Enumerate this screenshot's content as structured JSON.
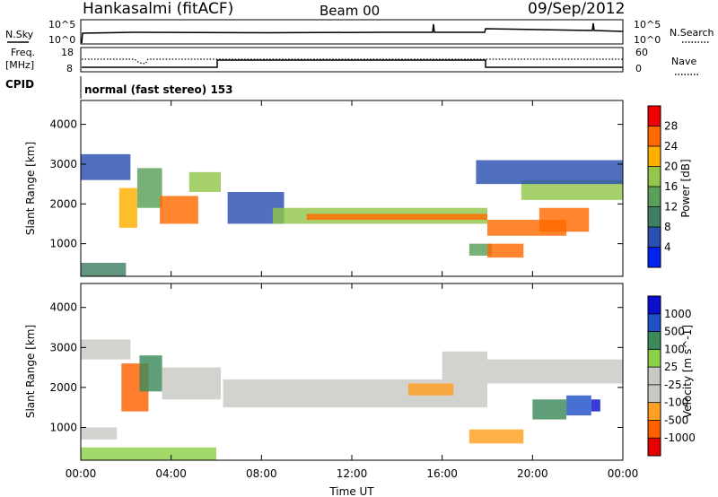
{
  "header": {
    "station": "Hankasalmi (fitACF)",
    "beam": "Beam 00",
    "date": "09/Sep/2012"
  },
  "panel_noise": {
    "left_label": "N.Sky",
    "right_label": "N.Search",
    "left_ticks": [
      "10^5",
      "10^0"
    ],
    "right_ticks": [
      "10^5",
      "10^0"
    ]
  },
  "panel_freq": {
    "left_label_1": "Freq.",
    "left_label_2": "[MHz]",
    "right_label": "Nave",
    "left_ticks": [
      "18",
      "8"
    ],
    "right_ticks": [
      "60",
      "0"
    ]
  },
  "panel_cpid": {
    "label": "CPID",
    "program": "normal (fast stereo) 153"
  },
  "colors": {
    "power": [
      "#0022ee",
      "#2a4fb0",
      "#3f7f63",
      "#5aa05a",
      "#93c64a",
      "#ffb000",
      "#ff6a00",
      "#ee0000"
    ],
    "velocity": [
      "#e80000",
      "#ff6000",
      "#ffa020",
      "#c8c8c4",
      "#c8c8c4",
      "#8cd048",
      "#3a8a5a",
      "#2050c8",
      "#0a10d0"
    ]
  },
  "chart_data": [
    {
      "type": "heatmap",
      "name": "power",
      "ylabel": "Slant Range [km]",
      "xlabel": "",
      "colorbar_label": "Power [dB]",
      "colorbar_ticks": [
        "4",
        "8",
        "12",
        "16",
        "20",
        "24",
        "28"
      ],
      "y_ticks": [
        "1000",
        "2000",
        "3000",
        "4000"
      ],
      "y_tick_values": [
        1000,
        2000,
        3000,
        4000
      ],
      "ylim": [
        180,
        4600
      ],
      "x_tick_values": [
        0,
        4,
        8,
        12,
        16,
        20,
        24
      ],
      "xlim": [
        0,
        24
      ],
      "regions": [
        {
          "t0": 0.0,
          "t1": 2.0,
          "r0": 180,
          "r1": 520,
          "level": 2
        },
        {
          "t0": 0.0,
          "t1": 2.2,
          "r0": 2600,
          "r1": 3250,
          "level": 1
        },
        {
          "t0": 1.7,
          "t1": 2.5,
          "r0": 1400,
          "r1": 2400,
          "level": 5
        },
        {
          "t0": 2.5,
          "t1": 3.6,
          "r0": 1900,
          "r1": 2900,
          "level": 3
        },
        {
          "t0": 3.5,
          "t1": 5.2,
          "r0": 1500,
          "r1": 2200,
          "level": 6
        },
        {
          "t0": 4.8,
          "t1": 6.2,
          "r0": 2300,
          "r1": 2800,
          "level": 4
        },
        {
          "t0": 6.5,
          "t1": 9.0,
          "r0": 1500,
          "r1": 2300,
          "level": 1
        },
        {
          "t0": 8.5,
          "t1": 18.0,
          "r0": 1500,
          "r1": 1900,
          "level": 4
        },
        {
          "t0": 10.0,
          "t1": 18.0,
          "r0": 1600,
          "r1": 1750,
          "level": 6
        },
        {
          "t0": 17.2,
          "t1": 18.2,
          "r0": 700,
          "r1": 1000,
          "level": 3
        },
        {
          "t0": 18.0,
          "t1": 19.6,
          "r0": 650,
          "r1": 1000,
          "level": 6
        },
        {
          "t0": 18.0,
          "t1": 21.5,
          "r0": 1200,
          "r1": 1600,
          "level": 6
        },
        {
          "t0": 20.3,
          "t1": 22.5,
          "r0": 1300,
          "r1": 1900,
          "level": 6
        },
        {
          "t0": 19.5,
          "t1": 24.0,
          "r0": 2100,
          "r1": 2600,
          "level": 4
        },
        {
          "t0": 17.5,
          "t1": 24.0,
          "r0": 2500,
          "r1": 3100,
          "level": 1
        }
      ]
    },
    {
      "type": "heatmap",
      "name": "velocity",
      "ylabel": "Slant Range [km]",
      "xlabel": "Time UT",
      "colorbar_label": "Velocity [m s^-1]",
      "colorbar_ticks": [
        "-1000",
        "-500",
        "-100",
        "-25",
        "25",
        "100",
        "500",
        "1000"
      ],
      "y_ticks": [
        "1000",
        "2000",
        "3000",
        "4000"
      ],
      "y_tick_values": [
        1000,
        2000,
        3000,
        4000
      ],
      "ylim": [
        180,
        4600
      ],
      "x_ticks": [
        "00:00",
        "04:00",
        "08:00",
        "12:00",
        "16:00",
        "20:00",
        "00:00"
      ],
      "x_tick_values": [
        0,
        4,
        8,
        12,
        16,
        20,
        24
      ],
      "xlim": [
        0,
        24
      ],
      "regions": [
        {
          "t0": 0.0,
          "t1": 6.0,
          "r0": 180,
          "r1": 500,
          "level": 5
        },
        {
          "t0": 0.0,
          "t1": 2.2,
          "r0": 2700,
          "r1": 3200,
          "level": 3
        },
        {
          "t0": 0.0,
          "t1": 1.6,
          "r0": 700,
          "r1": 1000,
          "level": 3
        },
        {
          "t0": 1.8,
          "t1": 3.0,
          "r0": 1400,
          "r1": 2600,
          "level": 1
        },
        {
          "t0": 2.6,
          "t1": 3.6,
          "r0": 1900,
          "r1": 2800,
          "level": 6
        },
        {
          "t0": 3.6,
          "t1": 6.2,
          "r0": 1700,
          "r1": 2500,
          "level": 3
        },
        {
          "t0": 6.3,
          "t1": 18.0,
          "r0": 1500,
          "r1": 2200,
          "level": 3
        },
        {
          "t0": 14.5,
          "t1": 16.5,
          "r0": 1800,
          "r1": 2100,
          "level": 2
        },
        {
          "t0": 16.0,
          "t1": 18.0,
          "r0": 2200,
          "r1": 2900,
          "level": 3
        },
        {
          "t0": 17.2,
          "t1": 19.6,
          "r0": 600,
          "r1": 950,
          "level": 2
        },
        {
          "t0": 18.0,
          "t1": 24.0,
          "r0": 2100,
          "r1": 2700,
          "level": 3
        },
        {
          "t0": 20.0,
          "t1": 21.5,
          "r0": 1200,
          "r1": 1700,
          "level": 6
        },
        {
          "t0": 21.5,
          "t1": 22.6,
          "r0": 1300,
          "r1": 1800,
          "level": 7
        },
        {
          "t0": 22.6,
          "t1": 23.0,
          "r0": 1400,
          "r1": 1700,
          "level": 8
        }
      ]
    }
  ]
}
